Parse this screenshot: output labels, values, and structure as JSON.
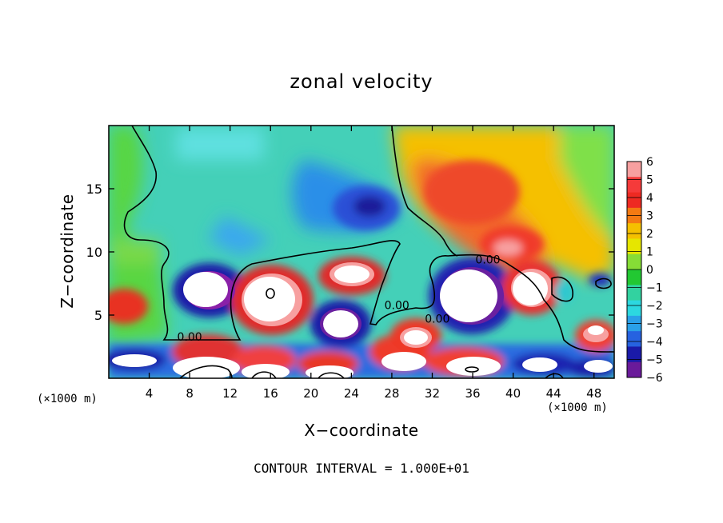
{
  "chart_data": {
    "type": "heatmap",
    "title": "zonal velocity",
    "xlabel": "X−coordinate",
    "ylabel": "Z−coordinate",
    "x_unit": "(×1000 m)",
    "xlim": [
      0,
      50
    ],
    "ylim": [
      0,
      20
    ],
    "x_ticks": [
      4,
      8,
      12,
      16,
      20,
      24,
      28,
      32,
      36,
      40,
      44,
      48
    ],
    "y_ticks": [
      5,
      10,
      15
    ],
    "colorbar": {
      "ticks": [
        6,
        5,
        4,
        3,
        2,
        1,
        0,
        -1,
        -2,
        -3,
        -4,
        -5,
        -6
      ],
      "tick_labels": [
        "6",
        "5",
        "4",
        "3",
        "2",
        "1",
        "0",
        "−1",
        "−2",
        "−3",
        "−4",
        "−5",
        "−6"
      ],
      "range": [
        -6,
        6
      ]
    },
    "contour_labels": [
      {
        "text": "0.00",
        "x": 8,
        "z": 3.3
      },
      {
        "text": "0.00",
        "x": 28.5,
        "z": 5.8
      },
      {
        "text": "0.00",
        "x": 32.5,
        "z": 4.7
      },
      {
        "text": "0.00",
        "x": 37.5,
        "z": 9.4
      }
    ],
    "features": [
      {
        "x": 26,
        "z": 13.5,
        "value": -5.5
      },
      {
        "x": 36,
        "z": 15,
        "value": 4.5
      },
      {
        "x": 40,
        "z": 10.5,
        "value": 5
      },
      {
        "x": 26,
        "z": 17,
        "value": -2
      },
      {
        "x": 10,
        "z": 7,
        "value": -6
      },
      {
        "x": 17,
        "z": 6.5,
        "value": 6
      },
      {
        "x": 25,
        "z": 8,
        "value": 6
      },
      {
        "x": 35.5,
        "z": 6.5,
        "value": -6
      },
      {
        "x": 2,
        "z": 5.5,
        "value": 4
      },
      {
        "x": 22,
        "z": 4,
        "value": -6
      }
    ]
  },
  "footer": "CONTOUR INTERVAL = 1.000E+01"
}
